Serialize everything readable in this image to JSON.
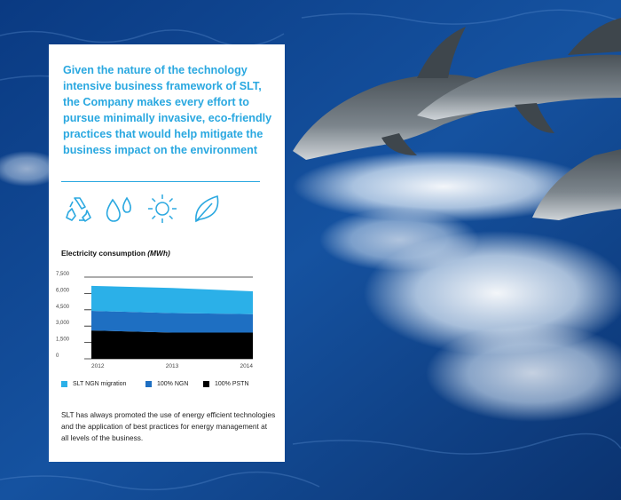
{
  "headline": "Given the nature of the technology intensive business framework of SLT, the Company makes every effort to pursue minimally invasive, eco-friendly practices that would help mitigate the business impact on the environment",
  "icons": [
    "recycle-icon",
    "water-drops-icon",
    "sun-icon",
    "leaf-icon"
  ],
  "colors": {
    "accent": "#2aa8e0",
    "sea": "#0d3a7a"
  },
  "chart_data": {
    "type": "area",
    "title": "Electricity consumption",
    "title_unit": "(MWh)",
    "x": [
      "2012",
      "2013",
      "2014"
    ],
    "series": [
      {
        "name": "100% PSTN",
        "values": [
          2600,
          2400,
          2400
        ],
        "color": "#000000"
      },
      {
        "name": "100% NGN",
        "values": [
          1800,
          1800,
          1700
        ],
        "color": "#1e6fc2"
      },
      {
        "name": "SLT NGN migration",
        "values": [
          2300,
          2300,
          2100
        ],
        "color": "#2bb0e8"
      }
    ],
    "stacked": true,
    "ylim": [
      0,
      7500
    ],
    "yticks": [
      "0",
      "1,500",
      "3,000",
      "4,500",
      "6,000",
      "7,500"
    ],
    "ytick_values": [
      0,
      1500,
      3000,
      4500,
      6000,
      7500
    ],
    "legend": [
      "SLT NGN migration",
      "100% NGN",
      "100% PSTN"
    ],
    "legend_position": "bottom",
    "grid": true
  },
  "body_text": "SLT has always promoted the use of energy efficient technologies and the application of best practices for energy management at all levels of the business."
}
